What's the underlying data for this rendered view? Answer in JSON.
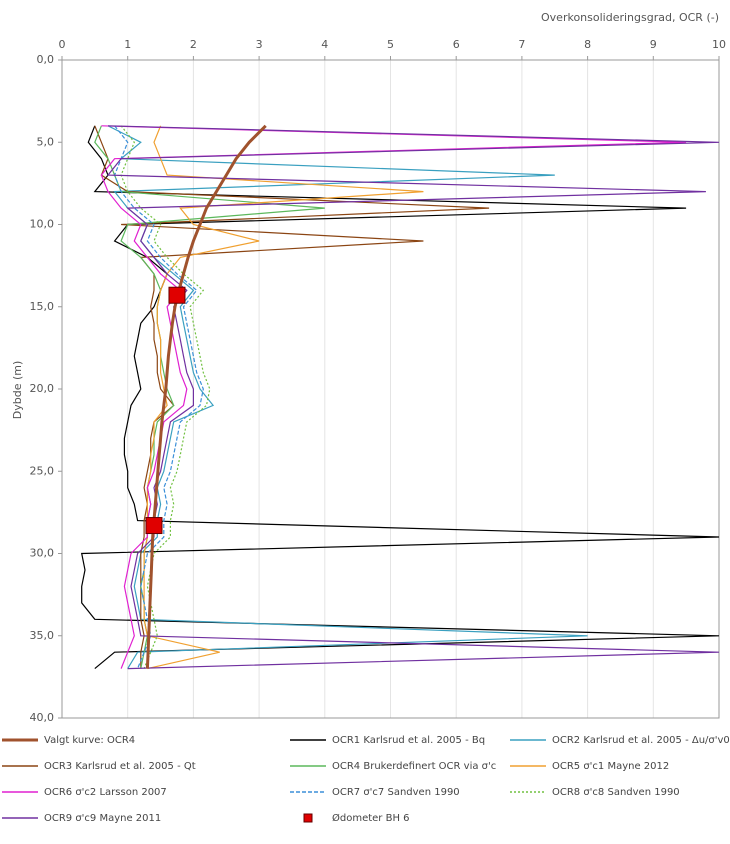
{
  "chart_data": {
    "type": "line",
    "x_label": "Overkonsolideringsgrad, OCR (-)",
    "y_label": "Dybde (m)",
    "xlim": [
      0,
      10
    ],
    "xticks": [
      0,
      1,
      2,
      3,
      4,
      5,
      6,
      7,
      8,
      9,
      10
    ],
    "ylim": [
      0,
      40
    ],
    "y_inverted": true,
    "yticks": [
      {
        "value": 0,
        "label": "0,0"
      },
      {
        "value": 5,
        "label": "5,0"
      },
      {
        "value": 10,
        "label": "10,0"
      },
      {
        "value": 15,
        "label": "15,0"
      },
      {
        "value": 20,
        "label": "20,0"
      },
      {
        "value": 25,
        "label": "25,0"
      },
      {
        "value": 30,
        "label": "30,0"
      },
      {
        "value": 35,
        "label": "35,0"
      },
      {
        "value": 40,
        "label": "40,0"
      }
    ],
    "grid": true,
    "depths": [
      4,
      5,
      6,
      7,
      8,
      9,
      10,
      11,
      12,
      13,
      14,
      15,
      16,
      17,
      18,
      19,
      20,
      21,
      22,
      23,
      24,
      25,
      26,
      27,
      28,
      29,
      30,
      31,
      32,
      33,
      34,
      35,
      36,
      37
    ],
    "series": [
      {
        "name": "Valgt kurve: OCR4",
        "color": "#a0522d",
        "width": 3,
        "values": [
          3.1,
          2.85,
          2.65,
          2.5,
          2.35,
          2.2,
          2.1,
          2.0,
          1.92,
          1.85,
          1.78,
          1.72,
          1.68,
          1.65,
          1.62,
          1.6,
          1.58,
          1.55,
          1.52,
          1.5,
          1.48,
          1.46,
          1.44,
          1.42,
          1.4,
          1.38,
          1.37,
          1.36,
          1.35,
          1.34,
          1.33,
          1.32,
          1.31,
          1.3
        ]
      },
      {
        "name": "OCR1 Karlsrud et al. 2005 - Bq",
        "color": "#000000",
        "values": [
          0.5,
          0.4,
          0.6,
          0.7,
          0.5,
          9.5,
          1.0,
          0.8,
          1.3,
          1.6,
          1.5,
          1.4,
          1.2,
          1.15,
          1.1,
          1.15,
          1.2,
          1.05,
          1.0,
          0.95,
          0.95,
          1.0,
          1.0,
          1.1,
          1.15,
          10,
          0.3,
          0.35,
          0.3,
          0.3,
          0.5,
          10,
          0.8,
          0.5
        ]
      },
      {
        "name": "OCR2 Karlsrud et al. 2005 - Δu/σ'v0",
        "color": "#3aa0c0",
        "values": [
          0.7,
          1.2,
          0.9,
          7.5,
          0.8,
          1.0,
          1.3,
          1.2,
          1.4,
          1.7,
          2.0,
          1.8,
          1.85,
          1.9,
          1.95,
          2.0,
          2.1,
          2.3,
          1.7,
          1.65,
          1.6,
          1.55,
          1.45,
          1.5,
          1.45,
          1.45,
          1.2,
          1.15,
          1.1,
          1.15,
          1.2,
          8,
          1.15,
          1.0
        ]
      },
      {
        "name": "OCR3 Karlsrud et al. 2005 - Qt",
        "color": "#8b4513",
        "values": [
          0.5,
          0.6,
          0.7,
          0.6,
          1.0,
          6.5,
          0.9,
          5.5,
          1.2,
          1.4,
          1.4,
          1.35,
          1.4,
          1.4,
          1.45,
          1.45,
          1.5,
          1.7,
          1.4,
          1.35,
          1.35,
          1.3,
          1.25,
          1.3,
          1.25,
          1.25,
          1.2,
          1.2,
          1.2,
          1.2,
          1.2,
          1.25,
          1.2,
          1.2
        ]
      },
      {
        "name": "OCR4 Brukerdefinert OCR via σ'c",
        "color": "#5cb85c",
        "values": [
          0.6,
          0.5,
          0.7,
          0.8,
          0.9,
          4.0,
          1.0,
          0.9,
          1.2,
          1.4,
          1.5,
          1.45,
          1.45,
          1.5,
          1.5,
          1.55,
          1.6,
          1.7,
          1.45,
          1.4,
          1.4,
          1.35,
          1.3,
          1.35,
          1.3,
          1.3,
          1.25,
          1.25,
          1.2,
          1.25,
          1.25,
          1.3,
          1.25,
          1.2
        ]
      },
      {
        "name": "OCR5 σ'c1 Mayne 2012",
        "color": "#f0a030",
        "values": [
          1.5,
          1.4,
          1.5,
          1.6,
          5.5,
          1.8,
          2.0,
          3.0,
          1.8,
          1.6,
          1.5,
          1.45,
          1.45,
          1.5,
          1.5,
          1.5,
          1.55,
          1.6,
          1.4,
          1.4,
          1.35,
          1.35,
          1.3,
          1.3,
          1.3,
          1.3,
          1.25,
          1.25,
          1.25,
          1.25,
          1.25,
          1.3,
          2.4,
          1.3
        ]
      },
      {
        "name": "OCR6 σ'c2 Larsson 2007",
        "color": "#e020d0",
        "values": [
          0.6,
          9.5,
          0.8,
          0.6,
          0.7,
          0.9,
          1.2,
          1.1,
          1.3,
          1.5,
          1.8,
          1.6,
          1.65,
          1.7,
          1.75,
          1.8,
          1.9,
          1.85,
          1.55,
          1.5,
          1.45,
          1.4,
          1.3,
          1.35,
          1.3,
          1.3,
          1.05,
          1.0,
          0.95,
          1.0,
          1.05,
          1.1,
          1.0,
          0.9
        ]
      },
      {
        "name": "OCR7 σ'c7 Sandven 1990",
        "color": "#3b8fd8",
        "style": "dashed",
        "values": [
          0.8,
          1.0,
          0.9,
          0.8,
          0.9,
          1.1,
          1.4,
          1.3,
          1.5,
          1.75,
          2.05,
          1.85,
          1.9,
          1.95,
          2.0,
          2.05,
          2.15,
          2.1,
          1.8,
          1.75,
          1.7,
          1.65,
          1.55,
          1.6,
          1.55,
          1.55,
          1.3,
          1.25,
          1.2,
          1.25,
          1.3,
          1.35,
          1.25,
          1.15
        ]
      },
      {
        "name": "OCR8 σ'c8 Sandven 1990",
        "color": "#70c040",
        "style": "dotted",
        "values": [
          0.9,
          1.1,
          1.0,
          0.9,
          1.0,
          1.2,
          1.5,
          1.4,
          1.6,
          1.85,
          2.15,
          1.95,
          2.0,
          2.05,
          2.1,
          2.15,
          2.25,
          2.2,
          1.9,
          1.85,
          1.8,
          1.75,
          1.65,
          1.7,
          1.65,
          1.65,
          1.4,
          1.35,
          1.3,
          1.35,
          1.4,
          1.45,
          1.35,
          1.25
        ]
      },
      {
        "name": "OCR9 σ'c9 Mayne 2011",
        "color": "#7030a0",
        "values": [
          0.7,
          10,
          0.9,
          0.7,
          9.8,
          1.0,
          1.3,
          1.2,
          1.4,
          1.6,
          1.9,
          1.7,
          1.75,
          1.8,
          1.85,
          1.9,
          2.0,
          2.0,
          1.65,
          1.6,
          1.55,
          1.5,
          1.4,
          1.45,
          1.4,
          1.4,
          1.15,
          1.1,
          1.05,
          1.1,
          1.15,
          1.2,
          10,
          1.0
        ]
      },
      {
        "name": "Ødometer BH 6",
        "color": "#e00000",
        "marker": "square",
        "depths": [
          14.3,
          28.3
        ],
        "values": [
          1.75,
          1.4
        ]
      }
    ]
  }
}
